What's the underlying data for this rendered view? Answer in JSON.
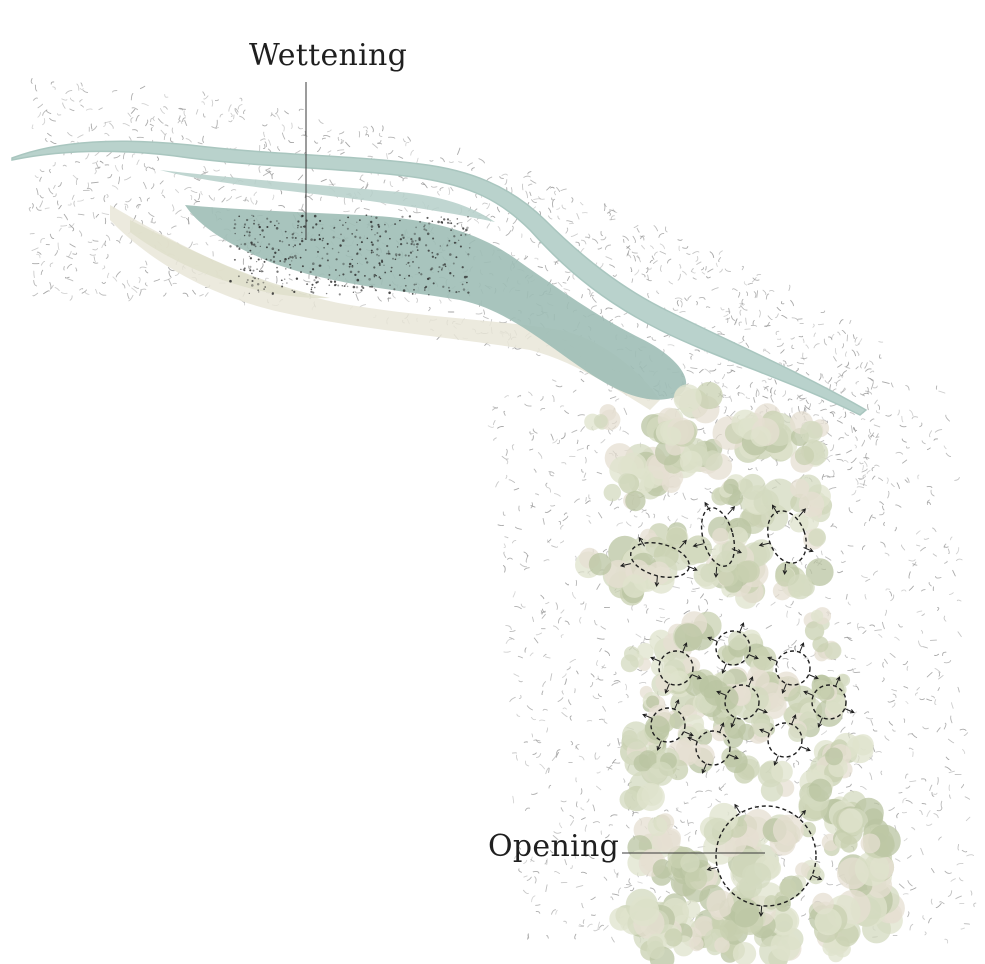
{
  "labels": {
    "wettening": "Wettening",
    "opening": "Opening"
  },
  "colors": {
    "water": "#b9d2cc",
    "water_dark": "#86a9a3",
    "vegetation": "#d3d9bf",
    "vegetation_dark": "#b9c4a1",
    "soil": "#e8dccf",
    "stroke": "#8a8a8a",
    "ink": "#1f1f1f"
  },
  "icons": [
    "arrow-icon",
    "dashed-circle-icon"
  ]
}
